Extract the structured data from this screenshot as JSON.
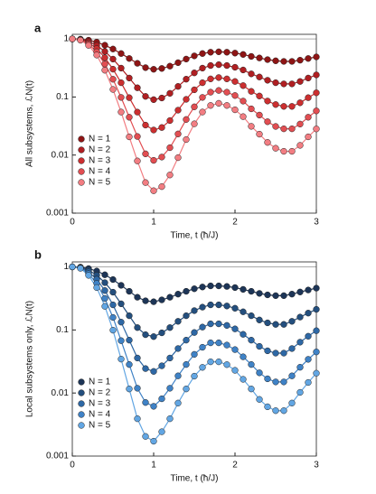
{
  "chart_data": [
    {
      "type": "line",
      "panel": "a",
      "ylabel": "All subsystems, ℒN(t)",
      "xlabel": "Time, t (ħ/J)",
      "log_y": true,
      "ylim": [
        0.001,
        1.2
      ],
      "yticks": [
        0.001,
        0.01,
        0.1,
        1
      ],
      "xlim": [
        0,
        3
      ],
      "xticks": [
        0,
        1,
        2,
        3
      ],
      "hline": 1,
      "legend": "lower-left",
      "x": [
        0,
        0.1,
        0.2,
        0.3,
        0.4,
        0.5,
        0.6,
        0.7,
        0.8,
        0.9,
        1,
        1.1,
        1.2,
        1.3,
        1.4,
        1.5,
        1.6,
        1.7,
        1.8,
        1.9,
        2,
        2.1,
        2.2,
        2.3,
        2.4,
        2.5,
        2.6,
        2.7,
        2.8,
        2.9,
        3
      ],
      "series": [
        {
          "name": "N = 1",
          "color": "#8e1515",
          "values": [
            1,
            0.99,
            0.95,
            0.88,
            0.78,
            0.67,
            0.56,
            0.46,
            0.38,
            0.32,
            0.3,
            0.31,
            0.34,
            0.39,
            0.45,
            0.51,
            0.56,
            0.59,
            0.6,
            0.59,
            0.57,
            0.54,
            0.5,
            0.47,
            0.44,
            0.42,
            0.41,
            0.41,
            0.43,
            0.46,
            0.49
          ]
        },
        {
          "name": "N = 2",
          "color": "#b01f22",
          "values": [
            1,
            0.98,
            0.9,
            0.774,
            0.608,
            0.449,
            0.314,
            0.212,
            0.144,
            0.1024,
            0.09,
            0.0961,
            0.1156,
            0.152,
            0.2025,
            0.26,
            0.314,
            0.348,
            0.36,
            0.348,
            0.325,
            0.292,
            0.25,
            0.221,
            0.194,
            0.176,
            0.168,
            0.168,
            0.185,
            0.212,
            0.24
          ]
        },
        {
          "name": "N = 3",
          "color": "#cc2f30",
          "values": [
            1,
            0.97,
            0.857,
            0.681,
            0.475,
            0.301,
            0.176,
            0.0973,
            0.0549,
            0.0328,
            0.027,
            0.0298,
            0.0393,
            0.0593,
            0.0911,
            0.133,
            0.176,
            0.205,
            0.216,
            0.205,
            0.185,
            0.157,
            0.125,
            0.104,
            0.0852,
            0.0741,
            0.0689,
            0.0689,
            0.0795,
            0.0973,
            0.118
          ]
        },
        {
          "name": "N = 4",
          "color": "#e24e52",
          "values": [
            1,
            0.96,
            0.815,
            0.6,
            0.37,
            0.202,
            0.0983,
            0.0448,
            0.0209,
            0.0105,
            0.0081,
            0.00924,
            0.0134,
            0.0231,
            0.041,
            0.0677,
            0.0983,
            0.121,
            0.1296,
            0.121,
            0.106,
            0.085,
            0.0625,
            0.0488,
            0.0375,
            0.0311,
            0.0283,
            0.0283,
            0.0342,
            0.0448,
            0.0576
          ]
        },
        {
          "name": "N = 5",
          "color": "#f27d82",
          "values": [
            1,
            0.95,
            0.774,
            0.528,
            0.289,
            0.135,
            0.0551,
            0.0206,
            0.00792,
            0.00336,
            0.00243,
            0.00286,
            0.00454,
            0.00902,
            0.0185,
            0.0345,
            0.0551,
            0.0715,
            0.0778,
            0.0715,
            0.0602,
            0.0459,
            0.03125,
            0.0229,
            0.0165,
            0.0131,
            0.0116,
            0.0116,
            0.0147,
            0.0206,
            0.0282
          ]
        }
      ]
    },
    {
      "type": "line",
      "panel": "b",
      "ylabel": "Local subsystems only, ℒN(t)",
      "xlabel": "Time, t (ħ/J)",
      "log_y": true,
      "ylim": [
        0.001,
        1.2
      ],
      "yticks": [
        0.001,
        0.01,
        0.1,
        1
      ],
      "xlim": [
        0,
        3
      ],
      "xticks": [
        0,
        1,
        2,
        3
      ],
      "hline": 1,
      "legend": "lower-left",
      "x": [
        0,
        0.1,
        0.2,
        0.3,
        0.4,
        0.5,
        0.6,
        0.7,
        0.8,
        0.9,
        1,
        1.1,
        1.2,
        1.3,
        1.4,
        1.5,
        1.6,
        1.7,
        1.8,
        1.9,
        2,
        2.1,
        2.2,
        2.3,
        2.4,
        2.5,
        2.6,
        2.7,
        2.8,
        2.9,
        3
      ],
      "series": [
        {
          "name": "N = 1",
          "color": "#1d3557",
          "values": [
            1,
            0.99,
            0.94,
            0.86,
            0.75,
            0.63,
            0.51,
            0.41,
            0.33,
            0.29,
            0.28,
            0.3,
            0.33,
            0.37,
            0.41,
            0.45,
            0.48,
            0.5,
            0.5,
            0.49,
            0.47,
            0.44,
            0.41,
            0.38,
            0.36,
            0.35,
            0.35,
            0.37,
            0.4,
            0.43,
            0.46
          ]
        },
        {
          "name": "N = 2",
          "color": "#244f7e",
          "values": [
            1,
            0.98,
            0.884,
            0.74,
            0.5625,
            0.397,
            0.26,
            0.168,
            0.109,
            0.0841,
            0.0784,
            0.09,
            0.109,
            0.137,
            0.168,
            0.2025,
            0.23,
            0.25,
            0.25,
            0.24,
            0.221,
            0.194,
            0.168,
            0.144,
            0.1296,
            0.1225,
            0.1225,
            0.137,
            0.16,
            0.185,
            0.212
          ]
        },
        {
          "name": "N = 3",
          "color": "#2e68a5",
          "values": [
            1,
            0.97,
            0.831,
            0.636,
            0.422,
            0.25,
            0.133,
            0.0689,
            0.0359,
            0.0244,
            0.022,
            0.027,
            0.0359,
            0.0507,
            0.0689,
            0.0911,
            0.111,
            0.125,
            0.125,
            0.118,
            0.104,
            0.0852,
            0.0689,
            0.0549,
            0.0467,
            0.0429,
            0.0429,
            0.0507,
            0.064,
            0.0795,
            0.0973
          ]
        },
        {
          "name": "N = 4",
          "color": "#3f82c6",
          "values": [
            1,
            0.96,
            0.781,
            0.547,
            0.316,
            0.158,
            0.0677,
            0.0283,
            0.0119,
            0.00707,
            0.00615,
            0.0081,
            0.0119,
            0.0187,
            0.0283,
            0.041,
            0.0531,
            0.0625,
            0.0625,
            0.0576,
            0.0488,
            0.0375,
            0.0283,
            0.0209,
            0.0168,
            0.015,
            0.015,
            0.0187,
            0.0256,
            0.0342,
            0.0448
          ]
        },
        {
          "name": "N = 5",
          "color": "#62a6e3",
          "values": [
            1,
            0.95,
            0.734,
            0.47,
            0.237,
            0.0992,
            0.0345,
            0.0116,
            0.00391,
            0.00205,
            0.00172,
            0.00243,
            0.00391,
            0.00693,
            0.0116,
            0.0185,
            0.0255,
            0.03125,
            0.03125,
            0.0282,
            0.0229,
            0.0165,
            0.0116,
            0.00792,
            0.00605,
            0.00525,
            0.00525,
            0.00693,
            0.01024,
            0.0147,
            0.0206
          ]
        }
      ]
    }
  ]
}
